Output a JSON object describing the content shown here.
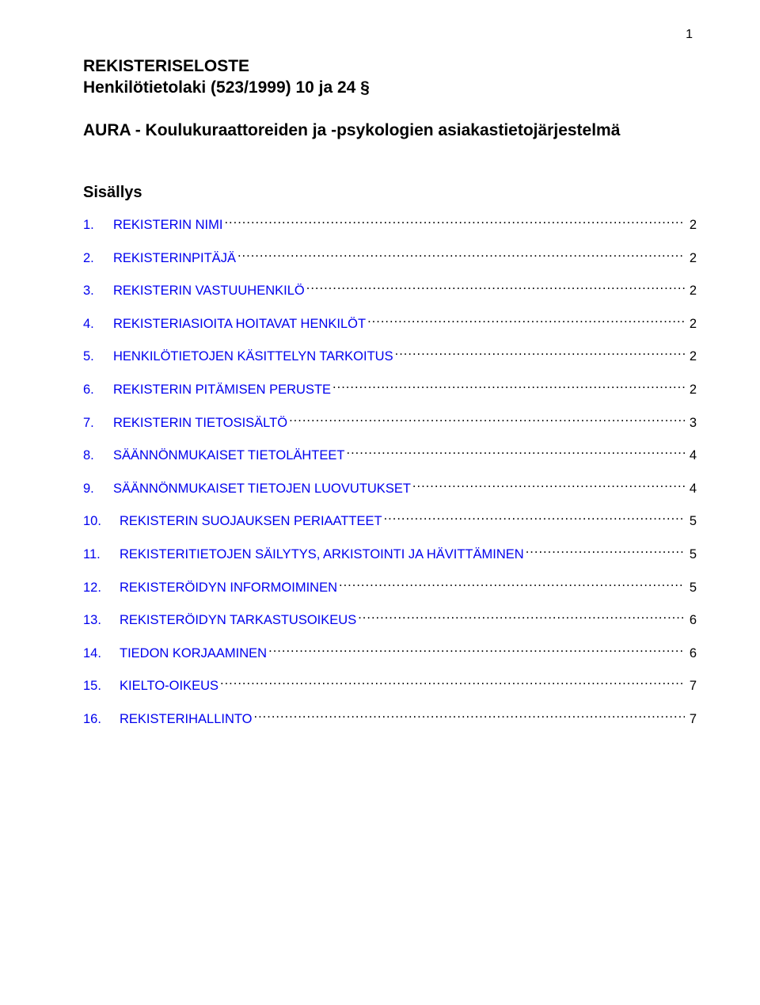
{
  "page_number": "1",
  "title": {
    "line1": "REKISTERISELOSTE",
    "line2": "Henkilötietolaki (523/1999) 10 ja 24 §",
    "subtitle": "AURA - Koulukuraattoreiden ja -psykologien asiakastietojärjestelmä"
  },
  "toc_heading": "Sisällys",
  "toc": [
    {
      "num": "1.",
      "label": "REKISTERIN NIMI",
      "page": "2"
    },
    {
      "num": "2.",
      "label": "REKISTERINPITÄJÄ",
      "page": "2"
    },
    {
      "num": "3.",
      "label": "REKISTERIN VASTUUHENKILÖ",
      "page": "2"
    },
    {
      "num": "4.",
      "label": "REKISTERIASIOITA HOITAVAT HENKILÖT",
      "page": "2"
    },
    {
      "num": "5.",
      "label": "HENKILÖTIETOJEN KÄSITTELYN TARKOITUS",
      "page": "2"
    },
    {
      "num": "6.",
      "label": "REKISTERIN PITÄMISEN PERUSTE",
      "page": "2"
    },
    {
      "num": "7.",
      "label": "REKISTERIN TIETOSISÄLTÖ",
      "page": "3"
    },
    {
      "num": "8.",
      "label": "SÄÄNNÖNMUKAISET TIETOLÄHTEET",
      "page": "4"
    },
    {
      "num": "9.",
      "label": "SÄÄNNÖNMUKAISET TIETOJEN LUOVUTUKSET",
      "page": "4"
    },
    {
      "num": "10.",
      "label": "REKISTERIN SUOJAUKSEN PERIAATTEET",
      "page": "5"
    },
    {
      "num": "11.",
      "label": "REKISTERITIETOJEN SÄILYTYS, ARKISTOINTI JA HÄVITTÄMINEN",
      "page": "5"
    },
    {
      "num": "12.",
      "label": "REKISTERÖIDYN INFORMOIMINEN",
      "page": "5"
    },
    {
      "num": "13.",
      "label": "REKISTERÖIDYN TARKASTUSOIKEUS",
      "page": "6"
    },
    {
      "num": "14.",
      "label": "TIEDON KORJAAMINEN",
      "page": "6"
    },
    {
      "num": "15.",
      "label": "KIELTO-OIKEUS",
      "page": "7"
    },
    {
      "num": "16.",
      "label": "REKISTERIHALLINTO",
      "page": "7"
    }
  ],
  "colors": {
    "link": "#0000ee",
    "text": "#000000",
    "background": "#ffffff"
  },
  "typography": {
    "body_font": "Arial",
    "title_fontsize_pt": 16,
    "toc_heading_fontsize_pt": 15,
    "toc_fontsize_pt": 12
  }
}
